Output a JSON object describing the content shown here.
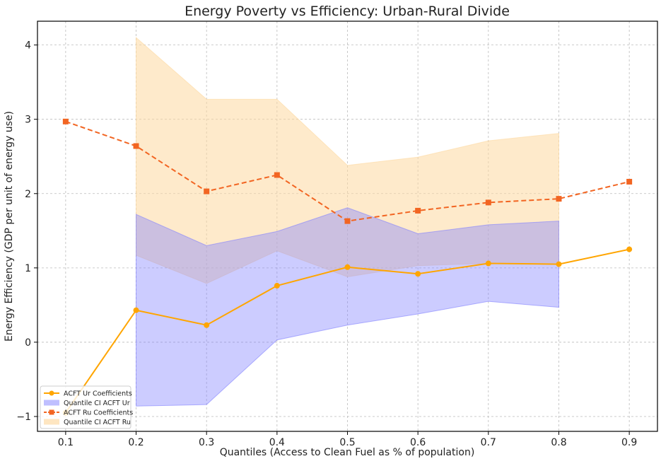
{
  "chart_data": {
    "type": "line",
    "title": "Energy Poverty vs Efficiency: Urban-Rural Divide",
    "xlabel": "Quantiles (Access to Clean Fuel as % of population)",
    "ylabel": "Energy Efficiency (GDP per unit of energy use)",
    "xlim": [
      0.06,
      0.94
    ],
    "ylim": [
      -1.2,
      4.32
    ],
    "xticks": [
      0.1,
      0.2,
      0.3,
      0.4,
      0.5,
      0.6,
      0.7,
      0.8,
      0.9
    ],
    "xtick_labels": [
      "0.1",
      "0.2",
      "0.3",
      "0.4",
      "0.5",
      "0.6",
      "0.7",
      "0.8",
      "0.9"
    ],
    "yticks": [
      -1,
      0,
      1,
      2,
      3,
      4
    ],
    "ytick_labels": [
      "−1",
      "0",
      "1",
      "2",
      "3",
      "4"
    ],
    "grid": true,
    "legend_position": "lower-left",
    "series": [
      {
        "name": "ACFT Ur Coefficients",
        "color": "#ffa500",
        "marker": "circle",
        "linestyle": "solid",
        "x": [
          0.1,
          0.2,
          0.3,
          0.4,
          0.5,
          0.6,
          0.7,
          0.8,
          0.9
        ],
        "values": [
          -0.95,
          0.43,
          0.23,
          0.76,
          1.01,
          0.92,
          1.06,
          1.05,
          1.25
        ]
      },
      {
        "name": "ACFT Ru Coefficients",
        "color": "#f26522",
        "marker": "square",
        "linestyle": "dashed",
        "x": [
          0.1,
          0.2,
          0.3,
          0.4,
          0.5,
          0.6,
          0.7,
          0.8,
          0.9
        ],
        "values": [
          2.97,
          2.64,
          2.03,
          2.25,
          1.63,
          1.77,
          1.88,
          1.93,
          2.16
        ]
      }
    ],
    "bands": [
      {
        "name": "Quantile CI ACFT Ur",
        "color": "#8080ff",
        "opacity": 0.4,
        "x": [
          0.2,
          0.3,
          0.4,
          0.5,
          0.6,
          0.7,
          0.8
        ],
        "lower": [
          -0.86,
          -0.84,
          0.03,
          0.23,
          0.38,
          0.55,
          0.47
        ],
        "upper": [
          1.72,
          1.3,
          1.49,
          1.81,
          1.46,
          1.58,
          1.63
        ]
      },
      {
        "name": "Quantile CI ACFT Ru",
        "color": "#fdd9a0",
        "opacity": 0.55,
        "x": [
          0.2,
          0.3,
          0.4,
          0.5,
          0.6,
          0.7,
          0.8
        ],
        "lower": [
          1.17,
          0.79,
          1.23,
          0.88,
          1.03,
          1.06,
          1.05
        ],
        "upper": [
          4.1,
          3.27,
          3.27,
          2.38,
          2.49,
          2.71,
          2.81
        ]
      }
    ],
    "legend": [
      "ACFT Ur Coefficients",
      "Quantile CI ACFT Ur",
      "ACFT Ru Coefficients",
      "Quantile CI ACFT Ru"
    ]
  }
}
